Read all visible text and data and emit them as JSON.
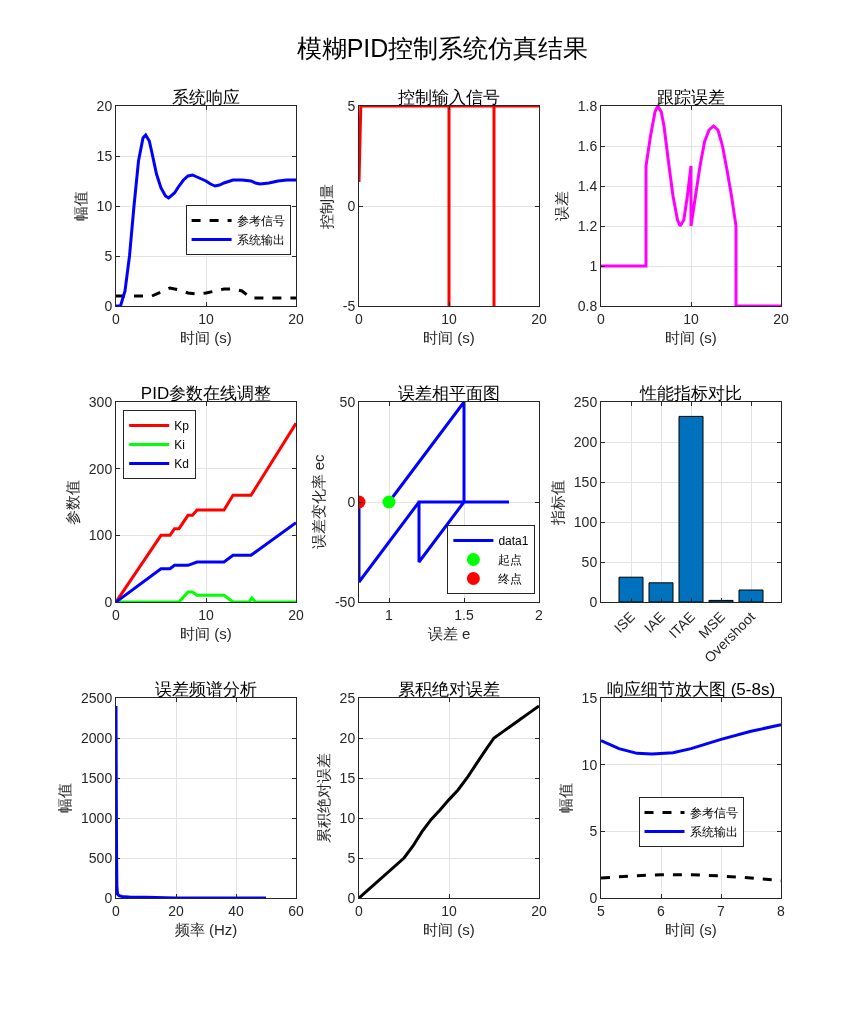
{
  "chart_data": [
    {
      "type": "other",
      "title": "模糊PID控制系统仿真结果"
    },
    {
      "type": "line",
      "title": "系统响应",
      "xlabel": "时间 (s)",
      "ylabel": "幅值",
      "xlim": [
        0,
        20
      ],
      "xticks": [
        0,
        10,
        20
      ],
      "ylim": [
        0,
        20
      ],
      "yticks": [
        0,
        5,
        10,
        15,
        20
      ],
      "grid": true,
      "legend": "right",
      "series": [
        {
          "name": "参考信号",
          "color": "#000000",
          "line_style": "dashed",
          "x": [
            0,
            1,
            2,
            3,
            4,
            5,
            6,
            7,
            8,
            9,
            10,
            11,
            12,
            13,
            14,
            15,
            16,
            17,
            18,
            19,
            20
          ],
          "values": [
            1,
            1,
            1,
            1,
            1,
            1.4,
            1.8,
            1.6,
            1.3,
            1.2,
            1.3,
            1.5,
            1.7,
            1.7,
            1.5,
            0.8,
            0.8,
            0.8,
            0.8,
            0.8,
            0.8
          ]
        },
        {
          "name": "系统输出",
          "color": "#0000ff",
          "line_style": "solid",
          "x": [
            0,
            0.5,
            1,
            1.5,
            2,
            2.5,
            3,
            3.3,
            3.7,
            4,
            4.5,
            5,
            5.5,
            5.85,
            6.5,
            7,
            7.5,
            8,
            8.5,
            9,
            10,
            10.5,
            11,
            11.5,
            12,
            13,
            14,
            15,
            15.5,
            16,
            17,
            18,
            19,
            20
          ],
          "values": [
            0,
            0,
            1.5,
            5,
            10,
            14.5,
            16.8,
            17.1,
            16.5,
            15.3,
            13.2,
            11.8,
            11,
            10.8,
            11.3,
            12,
            12.6,
            13,
            13.1,
            12.9,
            12.5,
            12.2,
            12,
            12.1,
            12.3,
            12.6,
            12.6,
            12.5,
            12.3,
            12.2,
            12.3,
            12.5,
            12.6,
            12.6
          ]
        }
      ]
    },
    {
      "type": "line",
      "title": "控制输入信号",
      "xlabel": "时间 (s)",
      "ylabel": "控制量",
      "xlim": [
        0,
        20
      ],
      "xticks": [
        0,
        10,
        20
      ],
      "ylim": [
        -5,
        5
      ],
      "yticks": [
        -5,
        0,
        5
      ],
      "grid": true,
      "series": [
        {
          "color": "#ff0000",
          "line_style": "solid",
          "x": [
            0,
            0.2,
            10,
            10,
            10,
            15,
            15,
            15,
            20
          ],
          "values": [
            1.2,
            5,
            5,
            -5,
            5,
            5,
            -5,
            5,
            5
          ]
        }
      ]
    },
    {
      "type": "line",
      "title": "跟踪误差",
      "xlabel": "时间 (s)",
      "ylabel": "误差",
      "xlim": [
        0,
        20
      ],
      "xticks": [
        0,
        10,
        20
      ],
      "ylim": [
        0.8,
        1.8
      ],
      "yticks": [
        0.8,
        1,
        1.2,
        1.4,
        1.6,
        1.8
      ],
      "grid": true,
      "series": [
        {
          "color": "#ff00ff",
          "line_style": "solid",
          "x": [
            0,
            5,
            5,
            5.5,
            6,
            6.3,
            6.7,
            7,
            7.5,
            8,
            8.5,
            8.8,
            9.2,
            9.6,
            10,
            10,
            10.5,
            11,
            11.5,
            12,
            12.5,
            13,
            13.5,
            14,
            14.5,
            15,
            15,
            20
          ],
          "values": [
            1,
            1,
            1.5,
            1.65,
            1.77,
            1.8,
            1.77,
            1.7,
            1.52,
            1.35,
            1.23,
            1.2,
            1.23,
            1.35,
            1.5,
            1.2,
            1.35,
            1.5,
            1.62,
            1.68,
            1.7,
            1.68,
            1.6,
            1.48,
            1.35,
            1.2,
            0.8,
            0.8
          ]
        }
      ]
    },
    {
      "type": "line",
      "title": "PID参数在线调整",
      "xlabel": "时间 (s)",
      "ylabel": "参数值",
      "xlim": [
        0,
        20
      ],
      "xticks": [
        0,
        10,
        20
      ],
      "ylim": [
        0,
        300
      ],
      "yticks": [
        0,
        100,
        200,
        300
      ],
      "grid": true,
      "legend": "top left",
      "series": [
        {
          "name": "Kp",
          "color": "#ff0000",
          "line_style": "solid",
          "x": [
            0,
            5,
            6,
            6.5,
            7,
            8,
            8.5,
            9,
            12,
            13,
            15,
            20
          ],
          "values": [
            0,
            100,
            100,
            110,
            110,
            130,
            130,
            138,
            138,
            160,
            160,
            268
          ]
        },
        {
          "name": "Ki",
          "color": "#00ff00",
          "line_style": "solid",
          "x": [
            0,
            7,
            8,
            8.5,
            9,
            12,
            13,
            14.8,
            15.1,
            15.5,
            20
          ],
          "values": [
            0,
            0,
            15,
            15,
            10,
            10,
            0,
            0,
            6,
            0,
            0
          ]
        },
        {
          "name": "Kd",
          "color": "#0000ff",
          "line_style": "solid",
          "x": [
            0,
            5,
            6,
            6.5,
            8,
            9,
            12,
            13,
            15,
            20
          ],
          "values": [
            0,
            50,
            50,
            55,
            55,
            60,
            60,
            70,
            70,
            119
          ]
        }
      ]
    },
    {
      "type": "line",
      "title": "误差相平面图",
      "xlabel": "误差 e",
      "ylabel": "误差变化率 ec",
      "xlim": [
        0.8,
        2
      ],
      "xticks": [
        1,
        1.5,
        2
      ],
      "ylim": [
        -50,
        50
      ],
      "yticks": [
        -50,
        0,
        50
      ],
      "grid": true,
      "legend": "bottom right",
      "series": [
        {
          "name": "data1",
          "color": "#0000ff",
          "line_style": "solid",
          "x": [
            1,
            1.5,
            1.5,
            1.8,
            1.2,
            1.2,
            1.5,
            1.2,
            0.8,
            0.8
          ],
          "values": [
            0,
            50,
            0,
            0,
            0,
            -30,
            0,
            0,
            -40,
            0
          ]
        },
        {
          "name": "起点",
          "type": "scatter",
          "marker": "circle",
          "color": "#00ff00",
          "x": [
            1
          ],
          "values": [
            0
          ]
        },
        {
          "name": "终点",
          "type": "scatter",
          "marker": "circle",
          "color": "#ff0000",
          "x": [
            0.8
          ],
          "values": [
            0
          ]
        }
      ]
    },
    {
      "type": "bar",
      "title": "性能指标对比",
      "ylabel": "指标值",
      "categories": [
        "ISE",
        "IAE",
        "ITAE",
        "MSE",
        "Overshoot"
      ],
      "values": [
        31,
        24,
        232,
        2,
        15
      ],
      "color": "#0072bd",
      "ylim": [
        0,
        250
      ],
      "yticks": [
        0,
        50,
        100,
        150,
        200,
        250
      ],
      "grid": true
    },
    {
      "type": "line",
      "title": "误差频谱分析",
      "xlabel": "频率 (Hz)",
      "ylabel": "幅值",
      "xlim": [
        0,
        60
      ],
      "xticks": [
        0,
        20,
        40,
        60
      ],
      "ylim": [
        0,
        2500
      ],
      "yticks": [
        0,
        500,
        1000,
        1500,
        2000,
        2500
      ],
      "grid": true,
      "series": [
        {
          "color": "#0000ff",
          "line_style": "solid",
          "x": [
            0,
            0.1,
            0.2,
            0.3,
            0.5,
            1,
            2,
            5,
            10,
            20,
            30,
            40,
            50
          ],
          "values": [
            2400,
            1300,
            500,
            150,
            50,
            30,
            20,
            10,
            10,
            0,
            0,
            0,
            0
          ]
        }
      ]
    },
    {
      "type": "line",
      "title": "累积绝对误差",
      "xlabel": "时间 (s)",
      "ylabel": "累积绝对误差",
      "xlim": [
        0,
        20
      ],
      "xticks": [
        0,
        10,
        20
      ],
      "ylim": [
        0,
        25
      ],
      "yticks": [
        0,
        5,
        10,
        15,
        20,
        25
      ],
      "grid": true,
      "series": [
        {
          "color": "#000000",
          "line_style": "solid",
          "x": [
            0,
            5,
            6,
            7,
            8,
            9,
            10,
            11,
            12,
            13,
            14,
            15,
            16,
            17,
            18,
            19,
            20
          ],
          "values": [
            0,
            5,
            6.5,
            8.3,
            9.8,
            11,
            12.3,
            13.5,
            15,
            16.7,
            18.4,
            20,
            20.8,
            21.6,
            22.4,
            23.2,
            24
          ]
        }
      ]
    },
    {
      "type": "line",
      "title": "响应细节放大图 (5-8s)",
      "xlabel": "时间 (s)",
      "ylabel": "幅值",
      "xlim": [
        5,
        8
      ],
      "xticks": [
        5,
        6,
        7,
        8
      ],
      "ylim": [
        0,
        15
      ],
      "yticks": [
        0,
        5,
        10,
        15
      ],
      "grid": true,
      "legend": "center",
      "series": [
        {
          "name": "参考信号",
          "color": "#000000",
          "line_style": "dashed",
          "x": [
            5,
            5.5,
            6,
            6.5,
            7,
            7.5,
            8
          ],
          "values": [
            1.5,
            1.65,
            1.75,
            1.75,
            1.65,
            1.5,
            1.3
          ]
        },
        {
          "name": "系统输出",
          "color": "#0000ff",
          "line_style": "solid",
          "x": [
            5,
            5.3,
            5.6,
            5.85,
            6.2,
            6.5,
            7,
            7.5,
            8
          ],
          "values": [
            11.8,
            11.2,
            10.85,
            10.8,
            10.9,
            11.2,
            11.9,
            12.5,
            13
          ]
        }
      ]
    }
  ]
}
